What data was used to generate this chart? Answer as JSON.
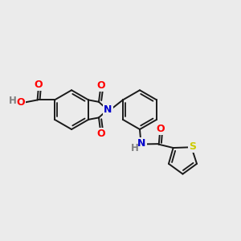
{
  "background_color": "#ebebeb",
  "bond_color": "#1a1a1a",
  "bond_width": 1.4,
  "atom_colors": {
    "O": "#ff0000",
    "N": "#0000cc",
    "S": "#cccc00",
    "H": "#808080",
    "C": "#1a1a1a"
  },
  "fig_width": 3.0,
  "fig_height": 3.0,
  "dpi": 100
}
